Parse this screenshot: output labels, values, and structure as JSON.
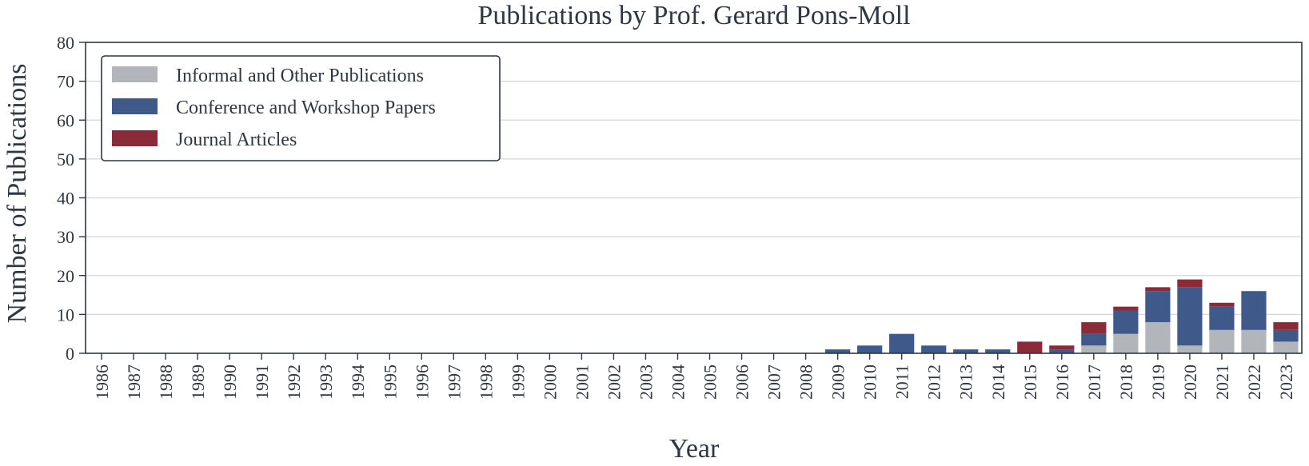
{
  "chart_data": {
    "type": "bar",
    "stacked": true,
    "title": "Publications by Prof. Gerard Pons-Moll",
    "xlabel": "Year",
    "ylabel": "Number of Publications",
    "ylim": [
      0,
      80
    ],
    "yticks": [
      0,
      10,
      20,
      30,
      40,
      50,
      60,
      70,
      80
    ],
    "grid": "horizontal",
    "legend_position": "top-left",
    "categories": [
      "1986",
      "1987",
      "1988",
      "1989",
      "1990",
      "1991",
      "1992",
      "1993",
      "1994",
      "1995",
      "1996",
      "1997",
      "1998",
      "1999",
      "2000",
      "2001",
      "2002",
      "2003",
      "2004",
      "2005",
      "2006",
      "2007",
      "2008",
      "2009",
      "2010",
      "2011",
      "2012",
      "2013",
      "2014",
      "2015",
      "2016",
      "2017",
      "2018",
      "2019",
      "2020",
      "2021",
      "2022",
      "2023"
    ],
    "series": [
      {
        "name": "Informal and Other Publications",
        "color": "#b2b5ba",
        "values": [
          0,
          0,
          0,
          0,
          0,
          0,
          0,
          0,
          0,
          0,
          0,
          0,
          0,
          0,
          0,
          0,
          0,
          0,
          0,
          0,
          0,
          0,
          0,
          0,
          0,
          0,
          0,
          0,
          0,
          0,
          0,
          2,
          5,
          8,
          2,
          6,
          6,
          3
        ]
      },
      {
        "name": "Conference and Workshop Papers",
        "color": "#3f5a8a",
        "values": [
          0,
          0,
          0,
          0,
          0,
          0,
          0,
          0,
          0,
          0,
          0,
          0,
          0,
          0,
          0,
          0,
          0,
          0,
          0,
          0,
          0,
          0,
          0,
          1,
          2,
          5,
          2,
          1,
          1,
          0,
          1,
          3,
          6,
          8,
          15,
          6,
          10,
          3
        ]
      },
      {
        "name": "Journal Articles",
        "color": "#8b2b3a",
        "values": [
          0,
          0,
          0,
          0,
          0,
          0,
          0,
          0,
          0,
          0,
          0,
          0,
          0,
          0,
          0,
          0,
          0,
          0,
          0,
          0,
          0,
          0,
          0,
          0,
          0,
          0,
          0,
          0,
          0,
          3,
          1,
          3,
          1,
          1,
          2,
          1,
          0,
          2
        ]
      }
    ]
  }
}
